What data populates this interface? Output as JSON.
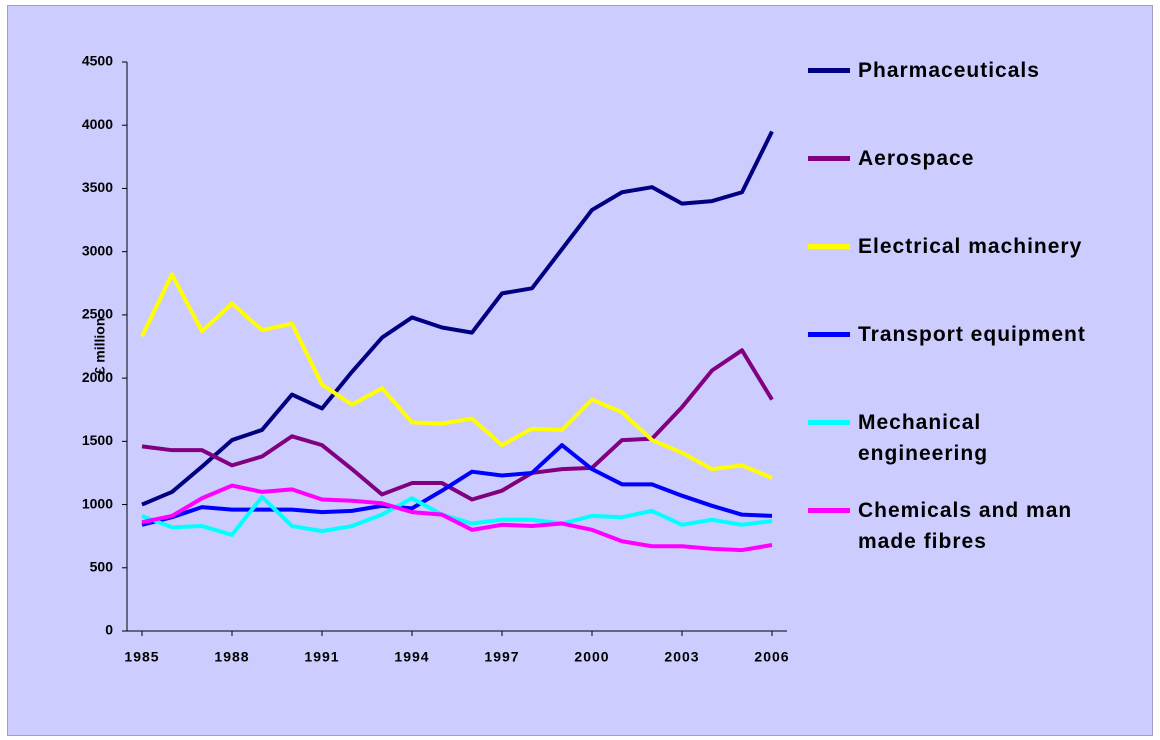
{
  "chart_data": {
    "type": "line",
    "ylabel": "£ million",
    "x": [
      1985,
      1986,
      1987,
      1988,
      1989,
      1990,
      1991,
      1992,
      1993,
      1994,
      1995,
      1996,
      1997,
      1998,
      1999,
      2000,
      2001,
      2002,
      2003,
      2004,
      2005,
      2006
    ],
    "xlim": [
      1984.5,
      2006.5
    ],
    "xticks": [
      1985,
      1988,
      1991,
      1994,
      1997,
      2000,
      2003,
      2006
    ],
    "ylim": [
      0,
      4500
    ],
    "yticks": [
      0,
      500,
      1000,
      1500,
      2000,
      2500,
      3000,
      3500,
      4000,
      4500
    ],
    "grid": false,
    "legend": "right",
    "series": [
      {
        "name": "Pharmaceuticals",
        "color": "#000080",
        "values": [
          1000,
          1100,
          1300,
          1510,
          1590,
          1870,
          1760,
          2050,
          2320,
          2480,
          2400,
          2360,
          2670,
          2710,
          3020,
          3330,
          3470,
          3510,
          3380,
          3400,
          3470,
          3950
        ]
      },
      {
        "name": "Aerospace",
        "color": "#800080",
        "values": [
          1460,
          1430,
          1430,
          1310,
          1380,
          1540,
          1470,
          1280,
          1080,
          1170,
          1170,
          1040,
          1110,
          1250,
          1280,
          1290,
          1510,
          1520,
          1770,
          2060,
          2220,
          1830
        ]
      },
      {
        "name": "Electrical machinery",
        "color": "#ffff00",
        "values": [
          2330,
          2820,
          2370,
          2590,
          2380,
          2430,
          1950,
          1790,
          1920,
          1650,
          1640,
          1680,
          1470,
          1600,
          1590,
          1830,
          1730,
          1510,
          1410,
          1280,
          1310,
          1210
        ]
      },
      {
        "name": "Transport equipment",
        "color": "#0000ff",
        "values": [
          840,
          900,
          980,
          960,
          960,
          960,
          940,
          950,
          990,
          970,
          1110,
          1260,
          1230,
          1250,
          1470,
          1280,
          1160,
          1160,
          1070,
          990,
          920,
          910
        ]
      },
      {
        "name": "Mechanical engineering",
        "color": "#00ffff",
        "values": [
          910,
          820,
          830,
          760,
          1060,
          830,
          790,
          830,
          920,
          1050,
          920,
          850,
          880,
          880,
          850,
          910,
          900,
          950,
          840,
          880,
          840,
          870
        ]
      },
      {
        "name": "Chemicals and man made fibres",
        "color": "#ff00ff",
        "values": [
          860,
          910,
          1050,
          1150,
          1100,
          1120,
          1040,
          1030,
          1010,
          940,
          920,
          800,
          840,
          830,
          850,
          800,
          710,
          670,
          670,
          650,
          640,
          680
        ]
      }
    ]
  }
}
